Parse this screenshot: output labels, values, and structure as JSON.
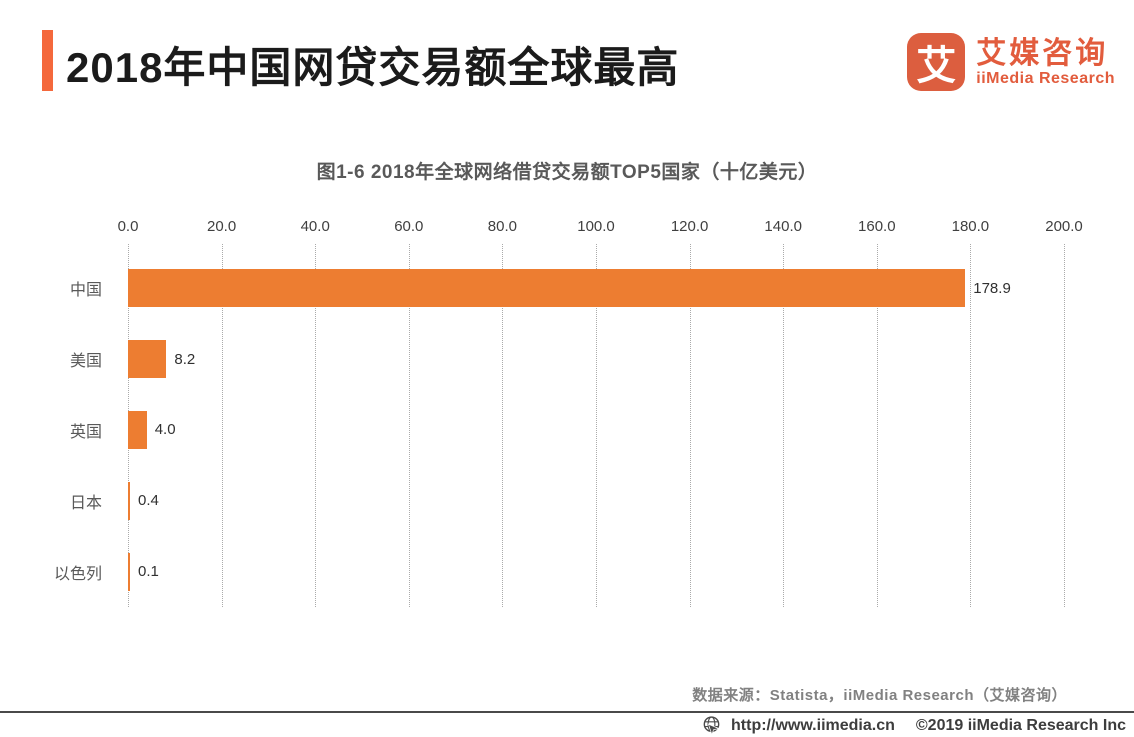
{
  "header": {
    "title": "2018年中国网贷交易额全球最高",
    "logo": {
      "icon_char": "艾",
      "name_cn": "艾媒咨询",
      "name_en": "iiMedia Research"
    }
  },
  "chart_data": {
    "type": "bar",
    "orientation": "horizontal",
    "title": "图1-6 2018年全球网络借贷交易额TOP5国家（十亿美元）",
    "categories": [
      "中国",
      "美国",
      "英国",
      "日本",
      "以色列"
    ],
    "values": [
      178.9,
      8.2,
      4.0,
      0.4,
      0.1
    ],
    "value_labels": [
      "178.9",
      "8.2",
      "4.0",
      "0.4",
      "0.1"
    ],
    "xlim": [
      0,
      200
    ],
    "x_ticks": [
      "0.0",
      "20.0",
      "40.0",
      "60.0",
      "80.0",
      "100.0",
      "120.0",
      "140.0",
      "160.0",
      "180.0",
      "200.0"
    ],
    "grid": "vertical-dotted",
    "legend": "none",
    "bar_color": "#ED7D31"
  },
  "source_note": "数据来源：Statista，iiMedia Research（艾媒咨询）",
  "footer": {
    "url": "http://www.iimedia.cn",
    "copyright": "©2019  iiMedia Research Inc"
  },
  "colors": {
    "accent": "#F4683C",
    "bar": "#ED7D31",
    "logo_bg": "#DC5E3F",
    "logo_text": "#E25C3D"
  }
}
